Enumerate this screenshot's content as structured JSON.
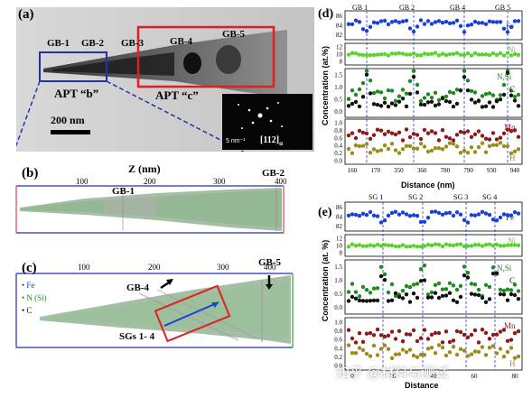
{
  "panel_a": {
    "label": "(a)",
    "gb_labels": [
      "GB-1",
      "GB-2",
      "GB-3",
      "GB-4",
      "GB-5"
    ],
    "apt_b": "APT “b”",
    "apt_c": "APT “c”",
    "scale_bar": "200 nm",
    "diffraction_scale": "5 nm⁻¹",
    "zone_axis": "[112]",
    "zone_axis_sub": "α"
  },
  "panel_b": {
    "label": "(b)",
    "axis_title": "Z (nm)",
    "ticks": [
      "100",
      "200",
      "300",
      "400"
    ],
    "labels": [
      "GB-1",
      "GB-2"
    ]
  },
  "panel_c": {
    "label": "(c)",
    "ticks": [
      "100",
      "200",
      "300",
      "400"
    ],
    "legend": [
      "• Fe",
      "• N (Si)",
      "• C"
    ],
    "labels": [
      "GB-4",
      "GB-5",
      "SGs 1- 4"
    ]
  },
  "panel_d": {
    "label": "(d)",
    "boundaries": [
      "GB 1",
      "GB 2",
      "GB 4",
      "GB 5"
    ],
    "ylabel": "Concentration (at.%)",
    "xlabel": "Distance (nm)",
    "x_ticks": [
      "160",
      "170",
      "350",
      "360",
      "780",
      "790",
      "930",
      "940"
    ],
    "fe_ticks": [
      "86",
      "84",
      "82"
    ],
    "ni_ticks": [
      "12",
      "10",
      "8"
    ],
    "mid_ticks": [
      "1.5",
      "1.0",
      "0.5",
      "0.0"
    ],
    "low_ticks": [
      "1.0",
      "0.8",
      "0.6",
      "0.4",
      "0.2",
      "0.0"
    ],
    "series_labels": {
      "fe": "Fe",
      "ni": "Ni",
      "nsi": "N,Si",
      "c": "C",
      "mn": "Mn",
      "h": "H"
    }
  },
  "panel_e": {
    "label": "(e)",
    "boundaries": [
      "SG 1",
      "SG 2",
      "SG 3",
      "SG 4"
    ],
    "ylabel": "Concentration (at. %)",
    "xlabel": "Distance",
    "x_ticks": [
      "0",
      "20",
      "40",
      "60",
      "80"
    ],
    "fe_ticks": [
      "86",
      "84",
      "82"
    ],
    "ni_ticks": [
      "12",
      "10",
      "8"
    ],
    "mid_ticks": [
      "1.5",
      "1.0",
      "0.5",
      "0.0"
    ],
    "low_ticks": [
      "1.0",
      "0.8",
      "0.6",
      "0.4",
      "0.2",
      "0.0"
    ],
    "series_labels": {
      "fe": "Fe",
      "ni": "Ni",
      "nsi": "N,Si",
      "c": "C",
      "mn": "Mn",
      "h": "H"
    }
  },
  "watermark": "知乎 @材料与测试",
  "colors": {
    "fe": "#1a3fd6",
    "ni": "#5ad12a",
    "nsi": "#1f8a1f",
    "c": "#111111",
    "mn": "#8b1a1a",
    "h": "#9a8c1e",
    "highlight": "#e02020",
    "apt_b_box": "#2233aa"
  }
}
